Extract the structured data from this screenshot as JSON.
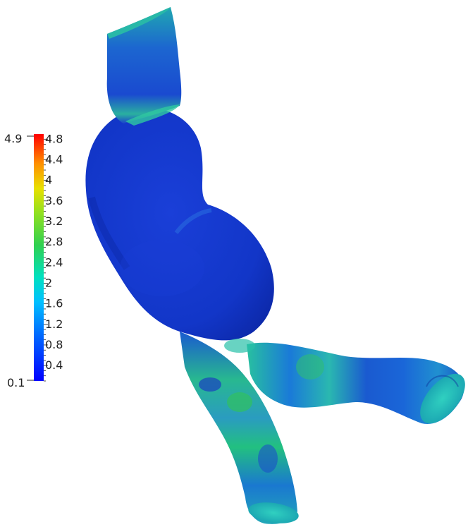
{
  "colorbar": {
    "min_label": "0.1",
    "max_label": "4.9",
    "tick_labels": [
      "4.8",
      "4.4",
      "4",
      "3.6",
      "3.2",
      "2.8",
      "2.4",
      "2",
      "1.6",
      "1.2",
      "0.8",
      "0.4"
    ],
    "colors": {
      "low": "#0000ff",
      "mid_low": "#00a0ff",
      "mid": "#00e0c0",
      "mid_high": "#40d040",
      "high_yellow": "#e8e000",
      "high": "#ff0000"
    }
  },
  "surface": {
    "base_color": "#1133cc",
    "highlight_color": "#20c0c0",
    "green_color": "#30c050"
  }
}
